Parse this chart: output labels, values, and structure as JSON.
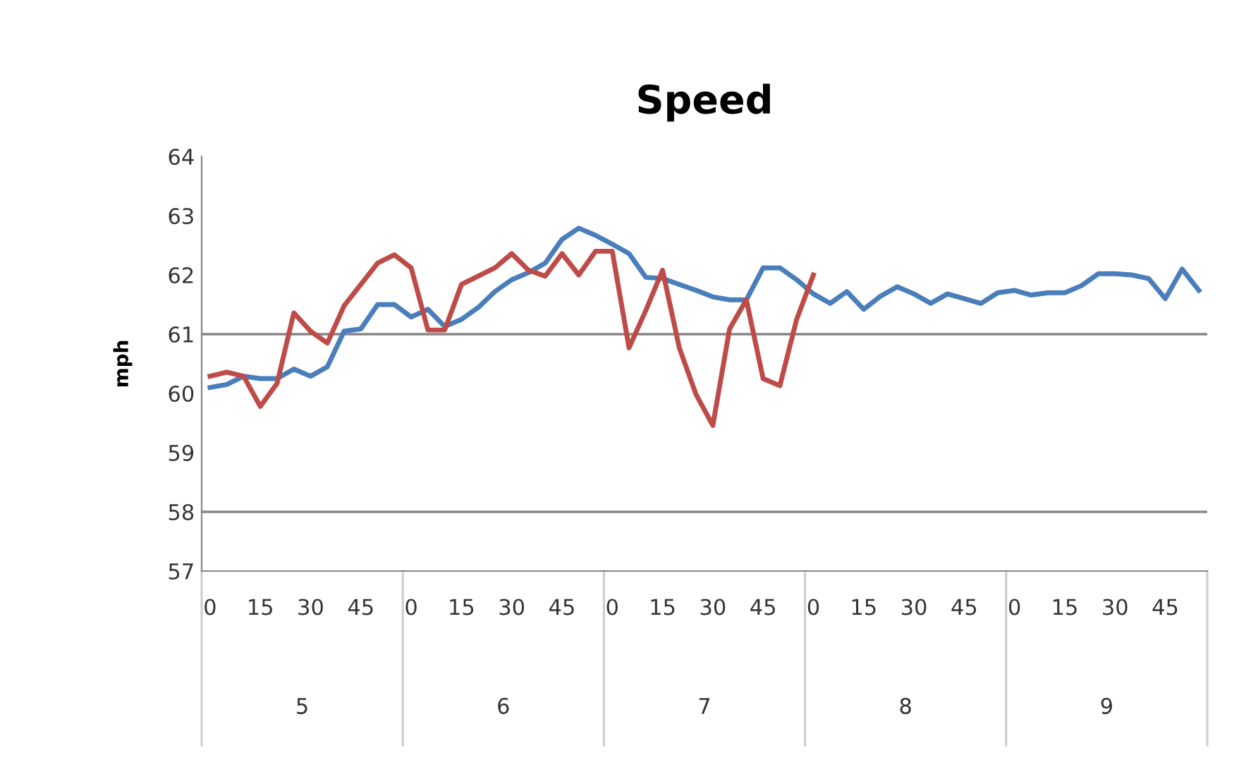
{
  "chart_data": {
    "type": "line",
    "title": "Speed",
    "ylabel": "mph",
    "categories": [
      "0",
      null,
      null,
      "15",
      null,
      null,
      "30",
      null,
      null,
      "45",
      null,
      null,
      "0",
      null,
      null,
      "15",
      null,
      null,
      "30",
      null,
      null,
      "45",
      null,
      null,
      "0",
      null,
      null,
      "15",
      null,
      null,
      "30",
      null,
      null,
      "45",
      null,
      null,
      "0",
      null,
      null,
      "15",
      null,
      null,
      "30",
      null,
      null,
      "45",
      null,
      null,
      "0",
      null,
      null,
      "15",
      null,
      null,
      "30",
      null,
      null,
      "45",
      null,
      null
    ],
    "annotations": [
      "5",
      "6",
      "7",
      "8",
      "9"
    ],
    "series": [
      {
        "color": "#4a7ebb",
        "values": [
          60.1,
          60.15,
          60.29,
          60.25,
          60.25,
          60.41,
          60.29,
          60.45,
          61.05,
          61.09,
          61.5,
          61.5,
          61.29,
          61.42,
          61.13,
          61.25,
          61.45,
          61.72,
          61.92,
          62.04,
          62.2,
          62.6,
          62.79,
          62.67,
          62.52,
          62.36,
          61.96,
          61.94,
          61.84,
          61.74,
          61.63,
          61.58,
          61.58,
          62.12,
          62.12,
          61.92,
          61.68,
          61.52,
          61.72,
          61.42,
          61.64,
          61.8,
          61.68,
          61.52,
          61.68,
          61.6,
          61.52,
          61.7,
          61.74,
          61.66,
          61.7,
          61.7,
          61.82,
          62.02,
          62.02,
          62.0,
          61.94,
          61.6,
          62.1,
          61.74
        ]
      },
      {
        "color": "#be4b48",
        "values": [
          60.29,
          60.36,
          60.29,
          59.78,
          60.17,
          61.36,
          61.05,
          60.85,
          61.48,
          61.84,
          62.2,
          62.34,
          62.12,
          61.07,
          61.07,
          61.84,
          61.98,
          62.12,
          62.36,
          62.08,
          61.98,
          62.36,
          62.0,
          62.4,
          62.4,
          60.77,
          61.4,
          62.08,
          60.77,
          59.98,
          59.46,
          61.09,
          61.58,
          60.25,
          60.13,
          61.25,
          62.0,
          null,
          null,
          null,
          null,
          null,
          null,
          null,
          null,
          null,
          null,
          null,
          null,
          null,
          null,
          null,
          null,
          null,
          null,
          null,
          null,
          null,
          null,
          null
        ]
      }
    ],
    "ylim": [
      57,
      64
    ],
    "yticks": [
      57,
      58,
      59,
      60,
      61,
      62,
      63,
      64
    ],
    "ref_lines": [
      {
        "axis": "y",
        "value": 61,
        "color": "#868686"
      },
      {
        "axis": "y",
        "value": 58,
        "color": "#868686"
      }
    ],
    "grid": false,
    "legend": false,
    "marker": "none",
    "line_style": "solid"
  }
}
